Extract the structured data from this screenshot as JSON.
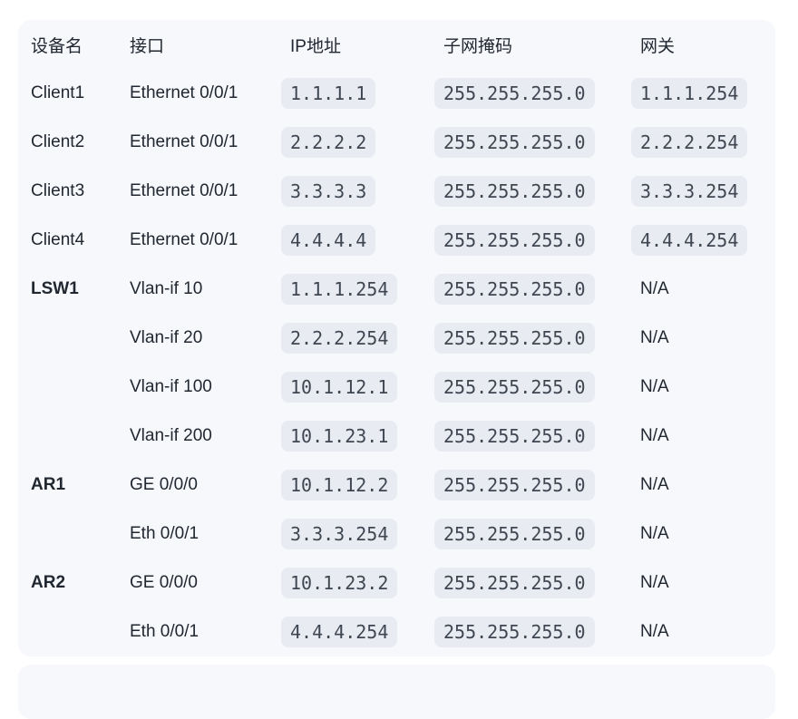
{
  "colors": {
    "page_bg": "#ffffff",
    "card_bg": "#f6f8fb",
    "pill_bg": "#e8ebf2",
    "text": "#212731",
    "mono_text": "#3f4651"
  },
  "table": {
    "headers": [
      "设备名",
      "接口",
      "IP地址",
      "子网掩码",
      "网关"
    ],
    "rows": [
      {
        "device": "Client1",
        "bold": false,
        "interface": "Ethernet 0/0/1",
        "ip": "1.1.1.1",
        "mask": "255.255.255.0",
        "gateway": "1.1.1.254",
        "gateway_pill": true
      },
      {
        "device": "Client2",
        "bold": false,
        "interface": "Ethernet 0/0/1",
        "ip": "2.2.2.2",
        "mask": "255.255.255.0",
        "gateway": "2.2.2.254",
        "gateway_pill": true
      },
      {
        "device": "Client3",
        "bold": false,
        "interface": "Ethernet 0/0/1",
        "ip": "3.3.3.3",
        "mask": "255.255.255.0",
        "gateway": "3.3.3.254",
        "gateway_pill": true
      },
      {
        "device": "Client4",
        "bold": false,
        "interface": "Ethernet 0/0/1",
        "ip": "4.4.4.4",
        "mask": "255.255.255.0",
        "gateway": "4.4.4.254",
        "gateway_pill": true
      },
      {
        "device": "LSW1",
        "bold": true,
        "interface": "Vlan-if 10",
        "ip": "1.1.1.254",
        "mask": "255.255.255.0",
        "gateway": "N/A",
        "gateway_pill": false
      },
      {
        "device": "",
        "bold": false,
        "interface": "Vlan-if 20",
        "ip": "2.2.2.254",
        "mask": "255.255.255.0",
        "gateway": "N/A",
        "gateway_pill": false
      },
      {
        "device": "",
        "bold": false,
        "interface": "Vlan-if 100",
        "ip": "10.1.12.1",
        "mask": "255.255.255.0",
        "gateway": "N/A",
        "gateway_pill": false
      },
      {
        "device": "",
        "bold": false,
        "interface": "Vlan-if 200",
        "ip": "10.1.23.1",
        "mask": "255.255.255.0",
        "gateway": "N/A",
        "gateway_pill": false
      },
      {
        "device": "AR1",
        "bold": true,
        "interface": "GE 0/0/0",
        "ip": "10.1.12.2",
        "mask": "255.255.255.0",
        "gateway": "N/A",
        "gateway_pill": false
      },
      {
        "device": "",
        "bold": false,
        "interface": "Eth 0/0/1",
        "ip": "3.3.3.254",
        "mask": "255.255.255.0",
        "gateway": "N/A",
        "gateway_pill": false
      },
      {
        "device": "AR2",
        "bold": true,
        "interface": "GE 0/0/0",
        "ip": "10.1.23.2",
        "mask": "255.255.255.0",
        "gateway": "N/A",
        "gateway_pill": false
      },
      {
        "device": "",
        "bold": false,
        "interface": "Eth 0/0/1",
        "ip": "4.4.4.254",
        "mask": "255.255.255.0",
        "gateway": "N/A",
        "gateway_pill": false
      }
    ]
  }
}
